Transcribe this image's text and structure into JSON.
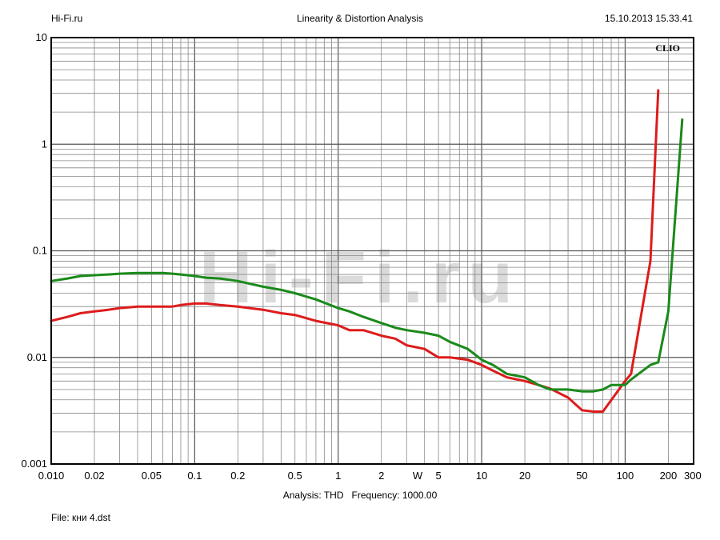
{
  "header": {
    "left": "Hi-Fi.ru",
    "title": "Linearity & Distortion Analysis",
    "timestamp": "15.10.2013 15.33.41"
  },
  "brand_label": "CLIO",
  "watermark": "Hi-Fi.ru",
  "footer": {
    "analysis": "Analysis: THD   Frequency: 1000.00",
    "file": "File: кни 4.dst"
  },
  "chart_data": {
    "type": "line",
    "title": "Linearity & Distortion Analysis",
    "xlabel": "W",
    "ylabel": "",
    "x_scale": "log",
    "y_scale": "log",
    "xlim": [
      0.01,
      300
    ],
    "ylim": [
      0.001,
      10
    ],
    "x_ticks": [
      {
        "v": 0.01,
        "label": "0.010"
      },
      {
        "v": 0.02,
        "label": "0.02"
      },
      {
        "v": 0.05,
        "label": "0.05"
      },
      {
        "v": 0.1,
        "label": "0.1"
      },
      {
        "v": 0.2,
        "label": "0.2"
      },
      {
        "v": 0.5,
        "label": "0.5"
      },
      {
        "v": 1,
        "label": "1"
      },
      {
        "v": 2,
        "label": "2"
      },
      {
        "v": 5,
        "label": "5"
      },
      {
        "v": 10,
        "label": "10"
      },
      {
        "v": 20,
        "label": "20"
      },
      {
        "v": 50,
        "label": "50"
      },
      {
        "v": 100,
        "label": "100"
      },
      {
        "v": 200,
        "label": "200"
      },
      {
        "v": 300,
        "label": "300"
      }
    ],
    "y_ticks": [
      {
        "v": 0.001,
        "label": "0.001"
      },
      {
        "v": 0.01,
        "label": "0.01"
      },
      {
        "v": 0.1,
        "label": "0.1"
      },
      {
        "v": 1,
        "label": "1"
      },
      {
        "v": 10,
        "label": "10"
      }
    ],
    "grid": true,
    "series": [
      {
        "color": "#dd1c1c",
        "x": [
          0.01,
          0.013,
          0.016,
          0.02,
          0.025,
          0.03,
          0.04,
          0.05,
          0.06,
          0.07,
          0.08,
          0.1,
          0.12,
          0.15,
          0.2,
          0.3,
          0.4,
          0.5,
          0.7,
          1,
          1.2,
          1.5,
          2,
          2.5,
          3,
          4,
          5,
          6,
          8,
          10,
          12,
          15,
          20,
          25,
          30,
          40,
          50,
          60,
          70,
          100,
          110,
          150,
          170
        ],
        "y": [
          0.022,
          0.024,
          0.026,
          0.027,
          0.028,
          0.029,
          0.03,
          0.03,
          0.03,
          0.03,
          0.031,
          0.032,
          0.032,
          0.031,
          0.03,
          0.028,
          0.026,
          0.025,
          0.022,
          0.02,
          0.018,
          0.018,
          0.016,
          0.015,
          0.013,
          0.012,
          0.01,
          0.01,
          0.0095,
          0.0085,
          0.0075,
          0.0065,
          0.006,
          0.0055,
          0.0051,
          0.0042,
          0.0032,
          0.0031,
          0.0031,
          0.006,
          0.007,
          0.08,
          3.2
        ]
      },
      {
        "color": "#1a8a1a",
        "x": [
          0.01,
          0.013,
          0.016,
          0.02,
          0.025,
          0.03,
          0.04,
          0.05,
          0.06,
          0.07,
          0.08,
          0.1,
          0.12,
          0.15,
          0.2,
          0.3,
          0.4,
          0.5,
          0.7,
          1,
          1.2,
          1.5,
          2,
          2.5,
          3,
          4,
          5,
          6,
          8,
          10,
          12,
          15,
          20,
          25,
          30,
          40,
          50,
          60,
          70,
          80,
          100,
          110,
          150,
          170,
          200,
          250
        ],
        "y": [
          0.052,
          0.055,
          0.058,
          0.059,
          0.06,
          0.061,
          0.062,
          0.062,
          0.062,
          0.061,
          0.06,
          0.058,
          0.056,
          0.055,
          0.052,
          0.046,
          0.043,
          0.04,
          0.035,
          0.029,
          0.027,
          0.024,
          0.021,
          0.019,
          0.018,
          0.017,
          0.016,
          0.014,
          0.012,
          0.0095,
          0.0085,
          0.007,
          0.0065,
          0.0055,
          0.005,
          0.005,
          0.0048,
          0.0048,
          0.005,
          0.0055,
          0.0055,
          0.0062,
          0.0085,
          0.009,
          0.027,
          1.7
        ]
      }
    ]
  }
}
